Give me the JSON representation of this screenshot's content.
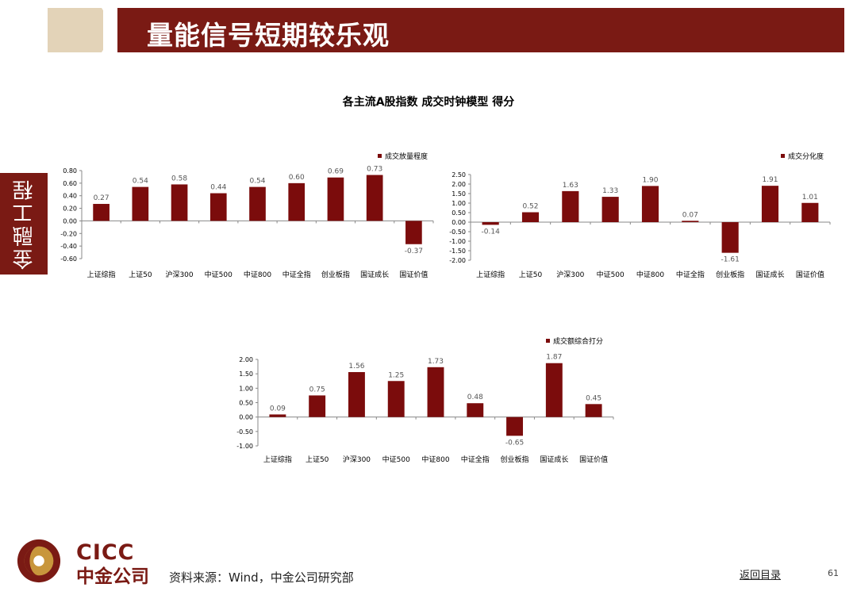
{
  "header": {
    "title": "量能信号短期较乐观"
  },
  "sidebar": {
    "label": "金融工程"
  },
  "main_title": "各主流A股指数  成交时钟模型  得分",
  "footer": {
    "logo_en": "CICC",
    "logo_cn": "中金公司",
    "source": "资料来源：Wind，中金公司研究部",
    "back_link": "返回目录",
    "page_number": "61"
  },
  "colors": {
    "brand": "#7a1a14",
    "bar": "#7b0c0c",
    "header_tan": "#e3d3b8",
    "logo_gold": "#c8963c"
  },
  "chart_data": [
    {
      "type": "bar",
      "categories": [
        "上证综指",
        "上证50",
        "沪深300",
        "中证500",
        "中证800",
        "中证全指",
        "创业板指",
        "国证成长",
        "国证价值"
      ],
      "series": [
        {
          "name": "成交放量程度",
          "values": [
            0.27,
            0.54,
            0.58,
            0.44,
            0.54,
            0.6,
            0.69,
            0.73,
            -0.37
          ]
        }
      ],
      "ylim": [
        -0.6,
        0.8
      ],
      "yticks": [
        0.8,
        0.6,
        0.4,
        0.2,
        0.0,
        -0.2,
        -0.4,
        -0.6
      ],
      "ytick_labels": [
        "0.80",
        "0.60",
        "0.40",
        "0.20",
        "0.00",
        "-0.20",
        "-0.40",
        "-0.60"
      ],
      "value_labels": [
        "0.27",
        "0.54",
        "0.58",
        "0.44",
        "0.54",
        "0.60",
        "0.69",
        "0.73",
        "-0.37"
      ],
      "legend_position": "top-right",
      "grid": false
    },
    {
      "type": "bar",
      "categories": [
        "上证综指",
        "上证50",
        "沪深300",
        "中证500",
        "中证800",
        "中证全指",
        "创业板指",
        "国证成长",
        "国证价值"
      ],
      "series": [
        {
          "name": "成交分化度",
          "values": [
            -0.14,
            0.52,
            1.63,
            1.33,
            1.9,
            0.07,
            -1.61,
            1.91,
            1.01
          ]
        }
      ],
      "ylim": [
        -2.0,
        2.5
      ],
      "yticks": [
        2.5,
        2.0,
        1.5,
        1.0,
        0.5,
        0.0,
        -0.5,
        -1.0,
        -1.5,
        -2.0
      ],
      "ytick_labels": [
        "2.50",
        "2.00",
        "1.50",
        "1.00",
        "0.50",
        "0.00",
        "-0.50",
        "-1.00",
        "-1.50",
        "-2.00"
      ],
      "value_labels": [
        "-0.14",
        "0.52",
        "1.63",
        "1.33",
        "1.90",
        "0.07",
        "-1.61",
        "1.91",
        "1.01"
      ],
      "legend_position": "top-right",
      "grid": false
    },
    {
      "type": "bar",
      "categories": [
        "上证综指",
        "上证50",
        "沪深300",
        "中证500",
        "中证800",
        "中证全指",
        "创业板指",
        "国证成长",
        "国证价值"
      ],
      "series": [
        {
          "name": "成交额综合打分",
          "values": [
            0.09,
            0.75,
            1.56,
            1.25,
            1.73,
            0.48,
            -0.65,
            1.87,
            0.45
          ]
        }
      ],
      "ylim": [
        -1.0,
        2.0
      ],
      "yticks": [
        2.0,
        1.5,
        1.0,
        0.5,
        0.0,
        -0.5,
        -1.0
      ],
      "ytick_labels": [
        "2.00",
        "1.50",
        "1.00",
        "0.50",
        "0.00",
        "-0.50",
        "-1.00"
      ],
      "value_labels": [
        "0.09",
        "0.75",
        "1.56",
        "1.25",
        "1.73",
        "0.48",
        "-0.65",
        "1.87",
        "0.45"
      ],
      "legend_position": "top-right",
      "grid": false
    }
  ]
}
